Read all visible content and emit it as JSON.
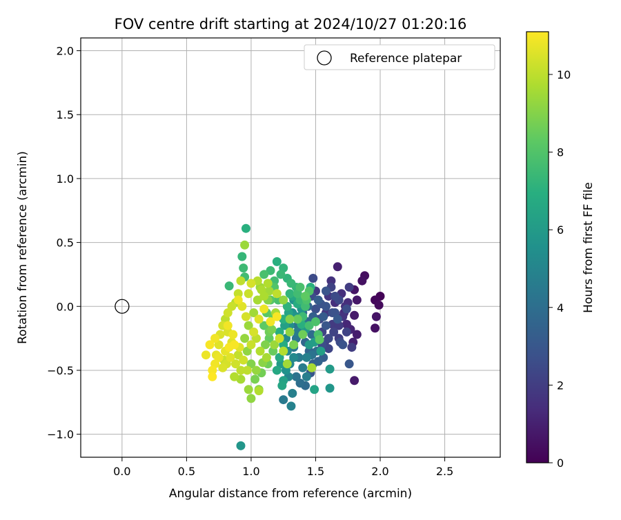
{
  "chart_data": {
    "type": "scatter",
    "title": "FOV centre drift starting at 2024/10/27 01:20:16",
    "xlabel": "Angular distance from reference (arcmin)",
    "ylabel": "Rotation from reference (arcmin)",
    "xlim": [
      -0.32,
      2.93
    ],
    "ylim": [
      -1.18,
      2.1
    ],
    "xticks": [
      0.0,
      0.5,
      1.0,
      1.5,
      2.0,
      2.5
    ],
    "xtick_labels": [
      "0.0",
      "0.5",
      "1.0",
      "1.5",
      "2.0",
      "2.5"
    ],
    "yticks": [
      -1.0,
      -0.5,
      0.0,
      0.5,
      1.0,
      1.5,
      2.0
    ],
    "ytick_labels": [
      "−1.0",
      "−0.5",
      "0.0",
      "0.5",
      "1.0",
      "1.5",
      "2.0"
    ],
    "grid": true,
    "legend": {
      "position": "top-right",
      "entries": [
        "Reference platepar"
      ]
    },
    "reference_point": {
      "x": 0.0,
      "y": 0.0
    },
    "colorbar": {
      "label": "Hours from first FF file",
      "colormap": "viridis",
      "range": [
        0,
        11.1
      ],
      "ticks": [
        0,
        2,
        4,
        6,
        8,
        10
      ],
      "tick_labels": [
        "0",
        "2",
        "4",
        "6",
        "8",
        "10"
      ]
    },
    "points": [
      [
        2.0,
        0.08,
        0.1
      ],
      [
        1.96,
        0.05,
        0.2
      ],
      [
        1.99,
        0.01,
        0.3
      ],
      [
        1.88,
        0.24,
        0.4
      ],
      [
        1.86,
        0.2,
        0.5
      ],
      [
        1.8,
        0.13,
        0.6
      ],
      [
        1.82,
        0.05,
        0.7
      ],
      [
        1.8,
        -0.07,
        0.8
      ],
      [
        1.97,
        -0.08,
        0.6
      ],
      [
        1.96,
        -0.17,
        0.5
      ],
      [
        1.82,
        -0.22,
        0.9
      ],
      [
        1.79,
        -0.28,
        1.0
      ],
      [
        1.8,
        -0.58,
        0.8
      ],
      [
        1.77,
        -0.18,
        1.1
      ],
      [
        1.74,
        -0.14,
        1.2
      ],
      [
        1.72,
        -0.05,
        1.3
      ],
      [
        1.75,
        0.03,
        1.4
      ],
      [
        1.7,
        0.1,
        1.5
      ],
      [
        1.65,
        0.03,
        1.5
      ],
      [
        1.67,
        0.31,
        1.0
      ],
      [
        1.62,
        0.2,
        1.6
      ],
      [
        1.6,
        0.08,
        1.7
      ],
      [
        1.58,
        -0.05,
        1.8
      ],
      [
        1.63,
        -0.14,
        1.9
      ],
      [
        1.68,
        -0.25,
        2.0
      ],
      [
        1.76,
        0.15,
        2.0
      ],
      [
        1.57,
        -0.28,
        2.1
      ],
      [
        1.55,
        -0.2,
        2.2
      ],
      [
        1.6,
        -0.33,
        2.3
      ],
      [
        1.53,
        -0.1,
        2.4
      ],
      [
        1.48,
        0.22,
        2.5
      ],
      [
        1.47,
        0.08,
        2.6
      ],
      [
        1.5,
        -0.02,
        2.7
      ],
      [
        1.54,
        0.02,
        2.8
      ],
      [
        1.5,
        0.12,
        1.8
      ],
      [
        1.62,
        0.15,
        2.2
      ],
      [
        1.65,
        0.08,
        2.5
      ],
      [
        1.58,
        0.12,
        2.9
      ],
      [
        1.68,
        0.05,
        2.4
      ],
      [
        1.74,
        -0.02,
        2.6
      ],
      [
        1.71,
        -0.3,
        2.8
      ],
      [
        1.76,
        -0.45,
        3.0
      ],
      [
        1.67,
        -0.1,
        3.1
      ],
      [
        1.56,
        -0.4,
        3.3
      ],
      [
        1.52,
        -0.43,
        3.5
      ],
      [
        1.45,
        -0.35,
        3.6
      ],
      [
        1.42,
        -0.28,
        3.7
      ],
      [
        1.44,
        -0.12,
        3.8
      ],
      [
        1.47,
        -0.22,
        3.9
      ],
      [
        1.4,
        -0.05,
        4.0
      ],
      [
        1.38,
        0.03,
        4.1
      ],
      [
        1.36,
        -0.15,
        4.2
      ],
      [
        1.35,
        -0.25,
        4.3
      ],
      [
        1.33,
        -0.32,
        4.4
      ],
      [
        1.37,
        -0.4,
        4.5
      ],
      [
        1.4,
        -0.48,
        4.6
      ],
      [
        1.43,
        -0.55,
        4.7
      ],
      [
        1.46,
        -0.52,
        3.0
      ],
      [
        1.32,
        -0.68,
        4.8
      ],
      [
        1.31,
        -0.78,
        4.9
      ],
      [
        1.25,
        -0.73,
        4.5
      ],
      [
        1.29,
        -0.55,
        5.0
      ],
      [
        1.3,
        -0.45,
        5.1
      ],
      [
        1.28,
        -0.35,
        5.2
      ],
      [
        1.27,
        -0.25,
        5.3
      ],
      [
        1.3,
        -0.15,
        5.4
      ],
      [
        1.32,
        -0.05,
        5.5
      ],
      [
        1.33,
        0.05,
        5.6
      ],
      [
        1.35,
        -0.08,
        5.7
      ],
      [
        1.39,
        -0.02,
        5.8
      ],
      [
        1.42,
        -0.18,
        5.9
      ],
      [
        1.45,
        -0.3,
        6.0
      ],
      [
        1.49,
        -0.28,
        6.1
      ],
      [
        1.54,
        -0.35,
        6.2
      ],
      [
        1.61,
        -0.49,
        6.0
      ],
      [
        1.61,
        -0.64,
        5.8
      ],
      [
        1.49,
        -0.65,
        6.4
      ],
      [
        1.24,
        -0.62,
        6.5
      ],
      [
        1.25,
        -0.58,
        6.3
      ],
      [
        1.2,
        -0.5,
        6.6
      ],
      [
        0.92,
        -1.09,
        5.8
      ],
      [
        1.22,
        -0.4,
        6.7
      ],
      [
        1.25,
        -0.3,
        6.8
      ],
      [
        1.22,
        -0.2,
        6.9
      ],
      [
        1.25,
        -0.1,
        7.0
      ],
      [
        1.28,
        0.0,
        7.1
      ],
      [
        1.3,
        0.1,
        7.2
      ],
      [
        1.35,
        0.15,
        7.3
      ],
      [
        1.38,
        0.05,
        7.4
      ],
      [
        1.4,
        -0.08,
        7.5
      ],
      [
        1.42,
        0.0,
        7.6
      ],
      [
        1.45,
        -0.15,
        7.7
      ],
      [
        1.52,
        -0.22,
        7.8
      ],
      [
        1.5,
        -0.12,
        7.9
      ],
      [
        1.2,
        0.35,
        7.0
      ],
      [
        1.25,
        0.3,
        7.2
      ],
      [
        1.23,
        0.25,
        7.4
      ],
      [
        1.18,
        0.2,
        7.6
      ],
      [
        1.15,
        0.28,
        7.5
      ],
      [
        1.1,
        0.25,
        7.8
      ],
      [
        0.96,
        0.61,
        7.0
      ],
      [
        0.93,
        0.39,
        7.3
      ],
      [
        0.94,
        0.3,
        7.5
      ],
      [
        0.95,
        0.23,
        7.6
      ],
      [
        0.83,
        0.16,
        7.4
      ],
      [
        1.38,
        0.15,
        7.8
      ],
      [
        1.18,
        0.15,
        8.0
      ],
      [
        1.15,
        0.05,
        8.1
      ],
      [
        1.12,
        -0.05,
        8.2
      ],
      [
        1.1,
        -0.15,
        8.3
      ],
      [
        1.14,
        -0.25,
        8.4
      ],
      [
        1.17,
        -0.35,
        8.5
      ],
      [
        1.13,
        -0.45,
        8.6
      ],
      [
        1.08,
        -0.52,
        8.7
      ],
      [
        1.03,
        -0.57,
        8.8
      ],
      [
        1.0,
        -0.72,
        9.2
      ],
      [
        1.06,
        -0.65,
        9.0
      ],
      [
        0.98,
        -0.65,
        9.4
      ],
      [
        1.06,
        -0.66,
        9.8
      ],
      [
        0.92,
        -0.57,
        9.6
      ],
      [
        1.0,
        -0.45,
        9.0
      ],
      [
        0.97,
        -0.35,
        9.2
      ],
      [
        0.95,
        -0.25,
        9.3
      ],
      [
        0.98,
        -0.15,
        9.4
      ],
      [
        1.02,
        -0.05,
        9.5
      ],
      [
        1.05,
        0.05,
        9.6
      ],
      [
        1.08,
        0.13,
        9.7
      ],
      [
        1.13,
        0.18,
        9.8
      ],
      [
        1.05,
        0.2,
        9.9
      ],
      [
        0.95,
        0.48,
        9.4
      ],
      [
        0.92,
        0.2,
        10.0
      ],
      [
        0.9,
        0.1,
        10.1
      ],
      [
        0.88,
        0.03,
        9.8
      ],
      [
        0.85,
        0.0,
        10.2
      ],
      [
        0.82,
        -0.05,
        10.3
      ],
      [
        0.8,
        -0.1,
        10.0
      ],
      [
        0.78,
        -0.15,
        10.4
      ],
      [
        0.82,
        -0.2,
        10.5
      ],
      [
        0.85,
        -0.28,
        10.6
      ],
      [
        0.8,
        -0.35,
        10.7
      ],
      [
        0.75,
        -0.4,
        10.8
      ],
      [
        0.72,
        -0.45,
        10.9
      ],
      [
        0.7,
        -0.5,
        11.0
      ],
      [
        0.65,
        -0.38,
        10.8
      ],
      [
        0.68,
        -0.3,
        11.0
      ],
      [
        0.7,
        -0.55,
        11.1
      ],
      [
        0.72,
        -0.25,
        10.9
      ],
      [
        0.75,
        -0.3,
        10.6
      ],
      [
        0.78,
        -0.48,
        10.5
      ],
      [
        0.88,
        -0.45,
        10.3
      ],
      [
        0.9,
        -0.38,
        10.1
      ],
      [
        0.92,
        -0.5,
        10.0
      ],
      [
        0.87,
        -0.55,
        9.8
      ],
      [
        1.0,
        -0.3,
        10.2
      ],
      [
        1.02,
        -0.2,
        10.4
      ],
      [
        1.06,
        -0.1,
        10.6
      ],
      [
        1.1,
        -0.02,
        10.8
      ],
      [
        1.15,
        -0.12,
        10.9
      ],
      [
        1.2,
        -0.08,
        11.0
      ],
      [
        1.22,
        -0.25,
        10.2
      ],
      [
        1.25,
        -0.35,
        9.8
      ],
      [
        1.28,
        -0.45,
        9.5
      ],
      [
        1.3,
        -0.2,
        9.2
      ],
      [
        1.33,
        -0.3,
        8.8
      ],
      [
        1.36,
        -0.1,
        8.5
      ],
      [
        1.4,
        -0.22,
        8.6
      ],
      [
        1.42,
        0.08,
        8.3
      ],
      [
        1.45,
        0.12,
        8.0
      ],
      [
        1.47,
        -0.48,
        9.6
      ],
      [
        1.2,
        0.1,
        10.0
      ],
      [
        1.25,
        0.05,
        9.2
      ],
      [
        1.3,
        -0.1,
        9.0
      ],
      [
        1.18,
        -0.3,
        9.4
      ],
      [
        1.12,
        -0.4,
        9.6
      ],
      [
        1.07,
        -0.35,
        9.8
      ],
      [
        1.04,
        -0.25,
        10.0
      ],
      [
        0.96,
        -0.08,
        10.4
      ],
      [
        0.93,
        0.0,
        10.6
      ],
      [
        0.9,
        0.05,
        10.8
      ],
      [
        0.98,
        0.1,
        10.2
      ],
      [
        1.0,
        0.18,
        10.4
      ],
      [
        1.07,
        0.15,
        9.4
      ],
      [
        1.13,
        0.05,
        9.0
      ],
      [
        1.16,
        -0.18,
        8.8
      ],
      [
        1.19,
        -0.05,
        9.6
      ],
      [
        0.87,
        -0.3,
        11.0
      ],
      [
        0.84,
        -0.4,
        10.6
      ],
      [
        0.82,
        -0.15,
        10.9
      ],
      [
        0.79,
        -0.42,
        10.2
      ],
      [
        0.76,
        -0.22,
        10.5
      ],
      [
        0.73,
        -0.38,
        10.7
      ],
      [
        1.35,
        -0.55,
        4.2
      ],
      [
        1.38,
        -0.6,
        4.0
      ],
      [
        1.42,
        -0.62,
        3.8
      ],
      [
        1.48,
        -0.45,
        3.4
      ],
      [
        1.55,
        -0.3,
        2.6
      ],
      [
        1.6,
        -0.25,
        2.4
      ],
      [
        1.64,
        -0.2,
        2.2
      ],
      [
        1.68,
        -0.15,
        1.9
      ],
      [
        1.71,
        -0.08,
        1.7
      ],
      [
        1.73,
        0.0,
        1.5
      ],
      [
        1.65,
        -0.05,
        2.8
      ],
      [
        1.58,
        -0.15,
        3.0
      ],
      [
        1.52,
        0.05,
        3.2
      ],
      [
        1.48,
        -0.08,
        3.4
      ],
      [
        1.44,
        0.0,
        3.6
      ],
      [
        1.4,
        -0.12,
        4.4
      ],
      [
        1.36,
        -0.2,
        4.6
      ],
      [
        1.33,
        -0.4,
        5.2
      ],
      [
        1.27,
        -0.5,
        5.6
      ],
      [
        1.23,
        -0.45,
        6.0
      ],
      [
        1.26,
        -0.15,
        6.2
      ],
      [
        1.29,
        -0.05,
        6.4
      ],
      [
        1.32,
        0.08,
        6.6
      ],
      [
        1.36,
        0.02,
        6.8
      ],
      [
        1.39,
        -0.14,
        7.0
      ],
      [
        1.21,
        0.05,
        7.8
      ],
      [
        1.17,
        -0.08,
        8.4
      ],
      [
        1.14,
        -0.2,
        8.6
      ],
      [
        1.11,
        -0.3,
        8.9
      ],
      [
        1.09,
        -0.44,
        9.1
      ],
      [
        1.04,
        -0.5,
        9.3
      ],
      [
        1.1,
        0.08,
        9.7
      ],
      [
        1.14,
        0.12,
        9.5
      ],
      [
        0.97,
        -0.5,
        10.0
      ],
      [
        0.94,
        -0.42,
        10.3
      ],
      [
        0.91,
        -0.32,
        10.6
      ],
      [
        0.86,
        -0.22,
        10.8
      ],
      [
        0.83,
        -0.32,
        11.0
      ],
      [
        0.81,
        -0.45,
        10.4
      ],
      [
        1.28,
        0.22,
        7.2
      ],
      [
        1.31,
        0.18,
        7.4
      ],
      [
        1.36,
        0.1,
        7.6
      ],
      [
        1.43,
        0.05,
        7.9
      ],
      [
        1.53,
        -0.26,
        8.3
      ],
      [
        1.46,
        0.15,
        7.0
      ],
      [
        1.78,
        -0.32,
        2.0
      ],
      [
        1.74,
        -0.2,
        2.2
      ],
      [
        1.69,
        -0.28,
        2.5
      ],
      [
        1.63,
        -0.05,
        2.7
      ],
      [
        1.58,
        0.0,
        2.9
      ],
      [
        1.56,
        -0.08,
        3.2
      ],
      [
        1.51,
        -0.35,
        3.9
      ],
      [
        1.47,
        -0.38,
        4.2
      ],
      [
        1.43,
        -0.4,
        4.8
      ]
    ]
  }
}
